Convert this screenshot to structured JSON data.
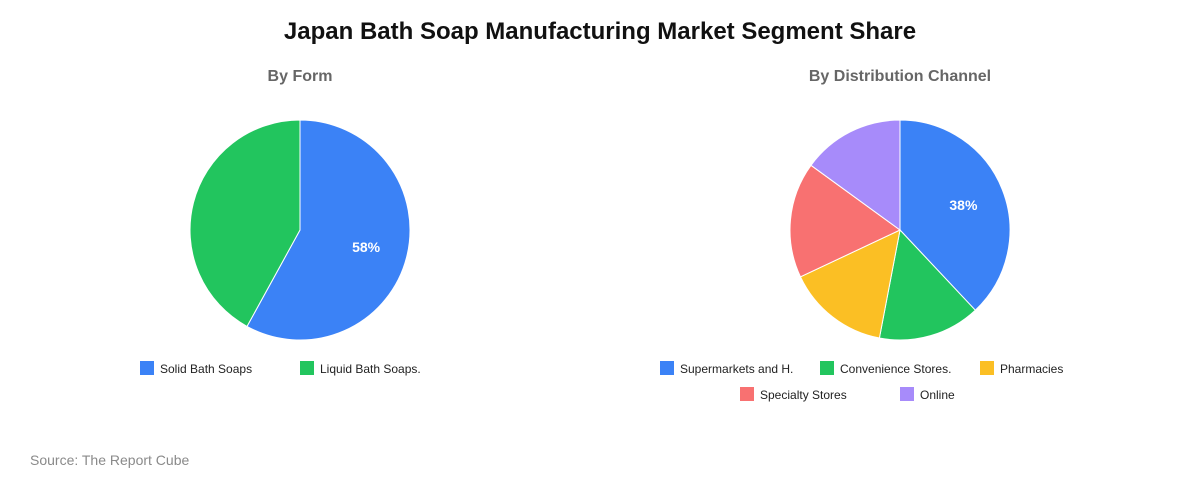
{
  "title": "Japan Bath Soap Manufacturing Market Segment Share",
  "source": "Source: The Report Cube",
  "chart_data": [
    {
      "type": "pie",
      "title": "By Form",
      "categories": [
        "Solid Bath Soaps",
        "Liquid Bath Soaps."
      ],
      "values": [
        58,
        42
      ],
      "colors": [
        "#3b82f6",
        "#22c55e"
      ],
      "data_labels": [
        "58%",
        ""
      ],
      "legend_position": "bottom"
    },
    {
      "type": "pie",
      "title": "By Distribution Channel",
      "categories": [
        "Supermarkets and H.",
        "Convenience Stores.",
        "Pharmacies",
        "Specialty Stores",
        "Online"
      ],
      "values": [
        38,
        15,
        15,
        17,
        15
      ],
      "colors": [
        "#3b82f6",
        "#22c55e",
        "#fbbf24",
        "#f87171",
        "#a78bfa"
      ],
      "data_labels": [
        "38%",
        "",
        "",
        "",
        ""
      ],
      "legend_position": "bottom"
    }
  ]
}
